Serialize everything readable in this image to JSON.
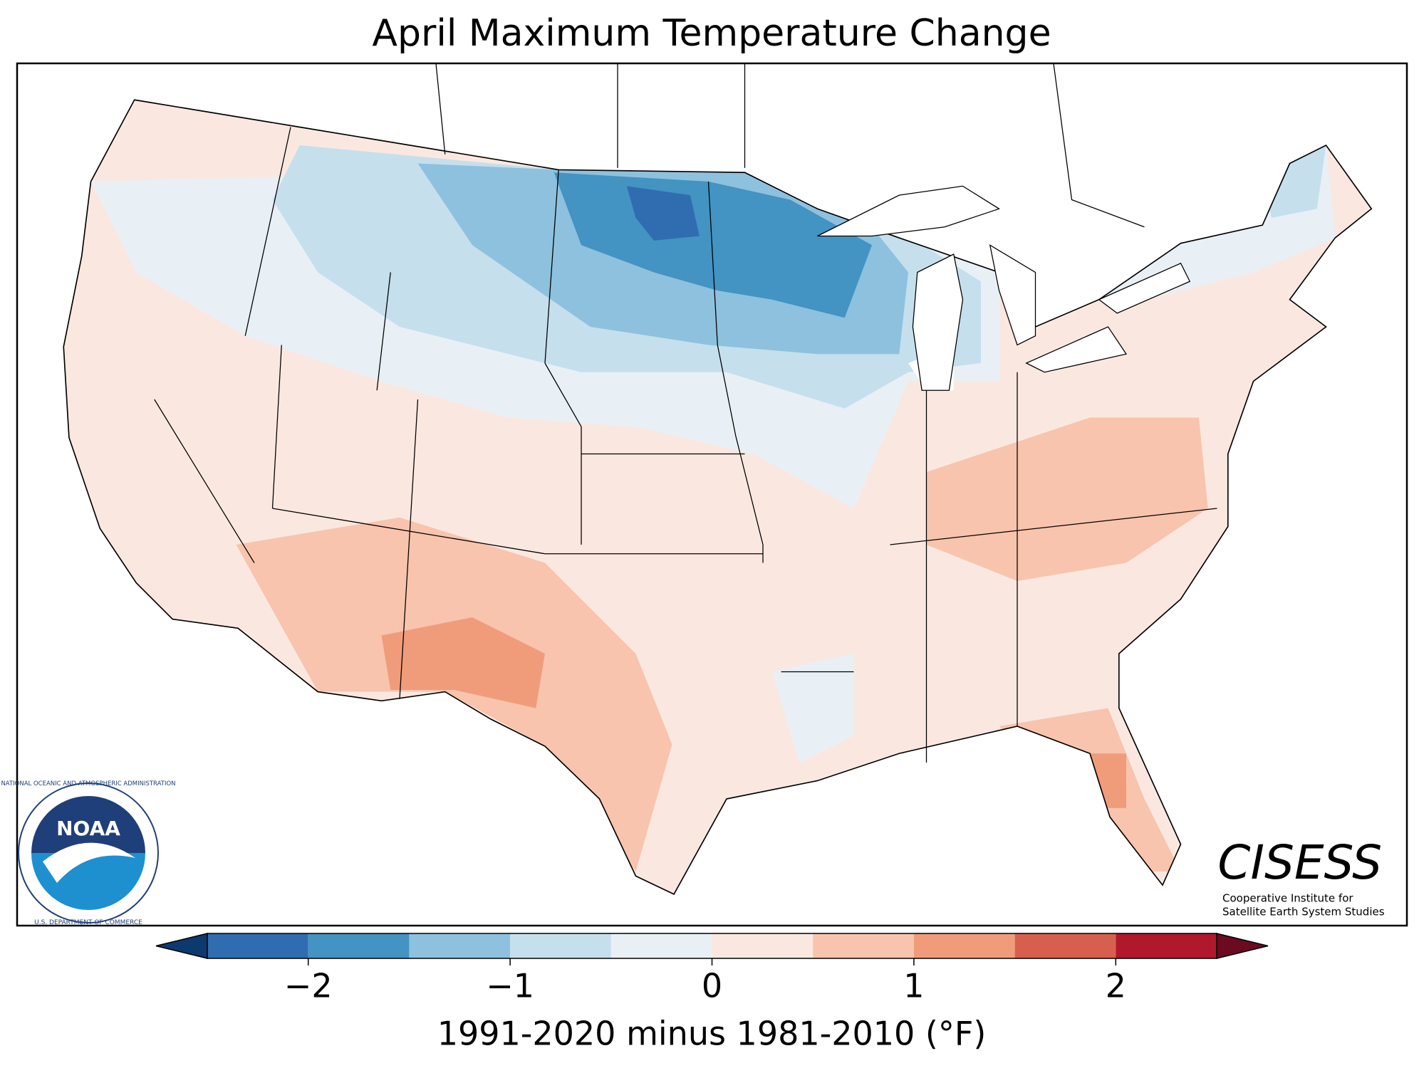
{
  "title": "April Maximum Temperature Change",
  "colorbar": {
    "bounds": [
      -2.5,
      -2,
      -1.5,
      -1,
      -0.5,
      0,
      0.5,
      1,
      1.5,
      2,
      2.5
    ],
    "colors": [
      "#2f6db0",
      "#4393c3",
      "#8ec1dd",
      "#c5dfed",
      "#e8f0f5",
      "#fae8e0",
      "#f8c4ad",
      "#f09c7b",
      "#d6604d",
      "#b2182b"
    ],
    "under_color": "#0d3a6e",
    "over_color": "#6b0a21",
    "ticks": [
      {
        "value": -2,
        "label": "−2"
      },
      {
        "value": -1,
        "label": "−1"
      },
      0,
      1,
      2
    ],
    "label": "1991-2020 minus 1981-2010 (°F)"
  },
  "logos": {
    "noaa": {
      "name": "NOAA",
      "ring_top": "NATIONAL OCEANIC AND ATMOSPHERIC ADMINISTRATION",
      "ring_bottom": "U.S. DEPARTMENT OF COMMERCE"
    },
    "cisess": {
      "name": "CISESS",
      "line1": "Cooperative Institute for",
      "line2": "Satellite Earth System Studies"
    }
  }
}
